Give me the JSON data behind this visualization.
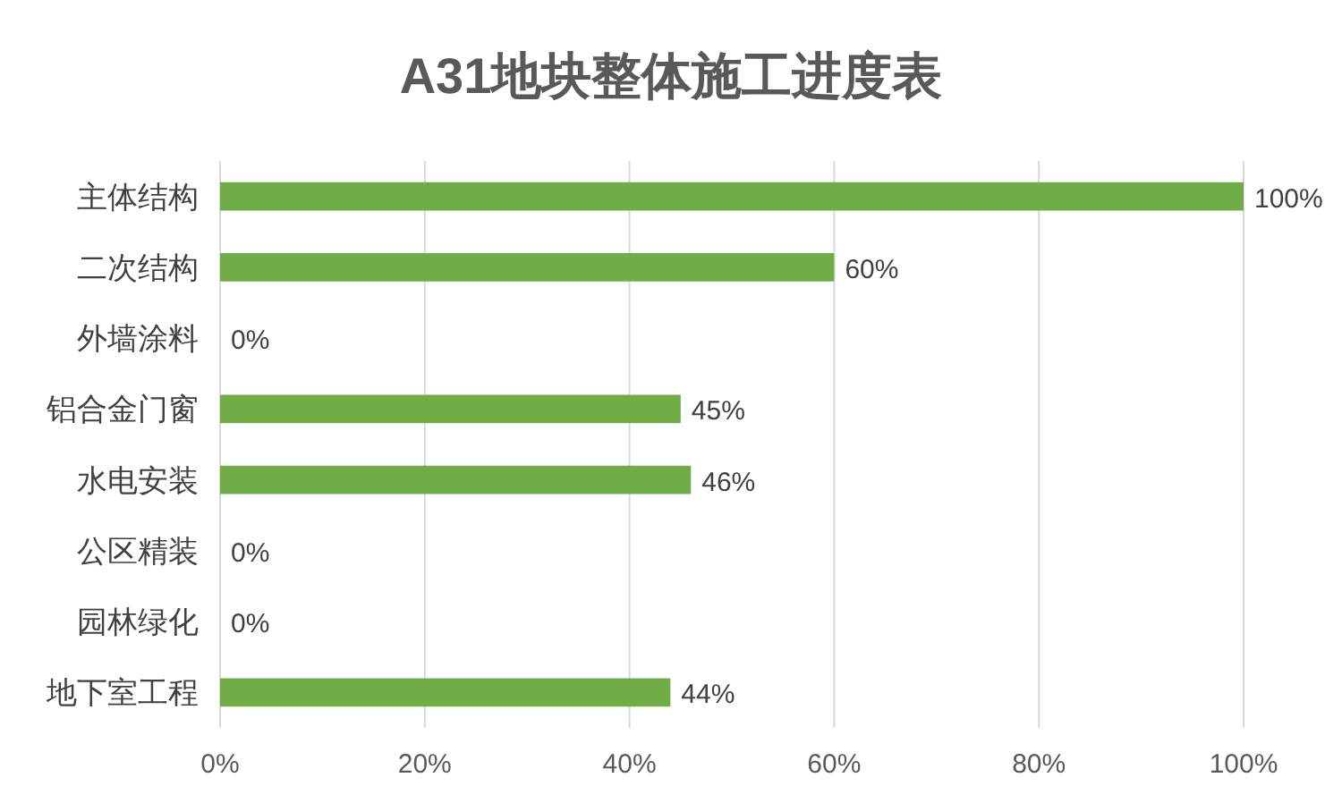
{
  "chart_data": {
    "type": "bar",
    "orientation": "horizontal",
    "title": "A31地块整体施工进度表",
    "categories": [
      "主体结构",
      "二次结构",
      "外墙涂料",
      "铝合金门窗",
      "水电安装",
      "公区精装",
      "园林绿化",
      "地下室工程"
    ],
    "values": [
      100,
      60,
      0,
      45,
      46,
      0,
      0,
      44
    ],
    "value_labels": [
      "100%",
      "60%",
      "0%",
      "45%",
      "46%",
      "0%",
      "0%",
      "44%"
    ],
    "color": "#70ad47",
    "xlim": [
      0,
      100
    ],
    "xticks": [
      {
        "value": 0,
        "label": "0%"
      },
      {
        "value": 20,
        "label": "20%"
      },
      {
        "value": 40,
        "label": "40%"
      },
      {
        "value": 60,
        "label": "60%"
      },
      {
        "value": 80,
        "label": "80%"
      },
      {
        "value": 100,
        "label": "100%"
      }
    ],
    "grid": "x"
  }
}
